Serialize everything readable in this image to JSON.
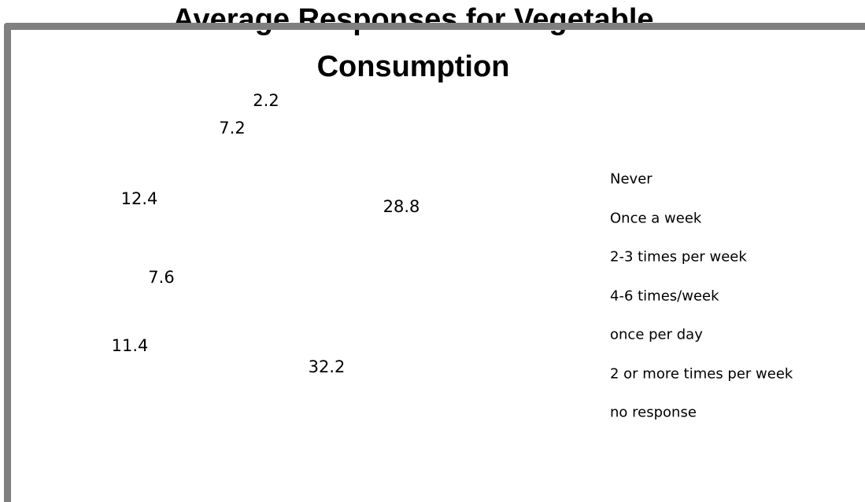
{
  "chart_data": {
    "type": "pie",
    "title": "Average Responses for Vegetable Consumption",
    "categories": [
      "Never",
      "Once a week",
      "2-3 times per week",
      "4-6 times/week",
      "once per day",
      "2 or more times per week",
      "no response"
    ],
    "values": [
      28.8,
      32.2,
      11.4,
      7.6,
      12.4,
      7.2,
      2.2
    ],
    "legend": "right"
  }
}
